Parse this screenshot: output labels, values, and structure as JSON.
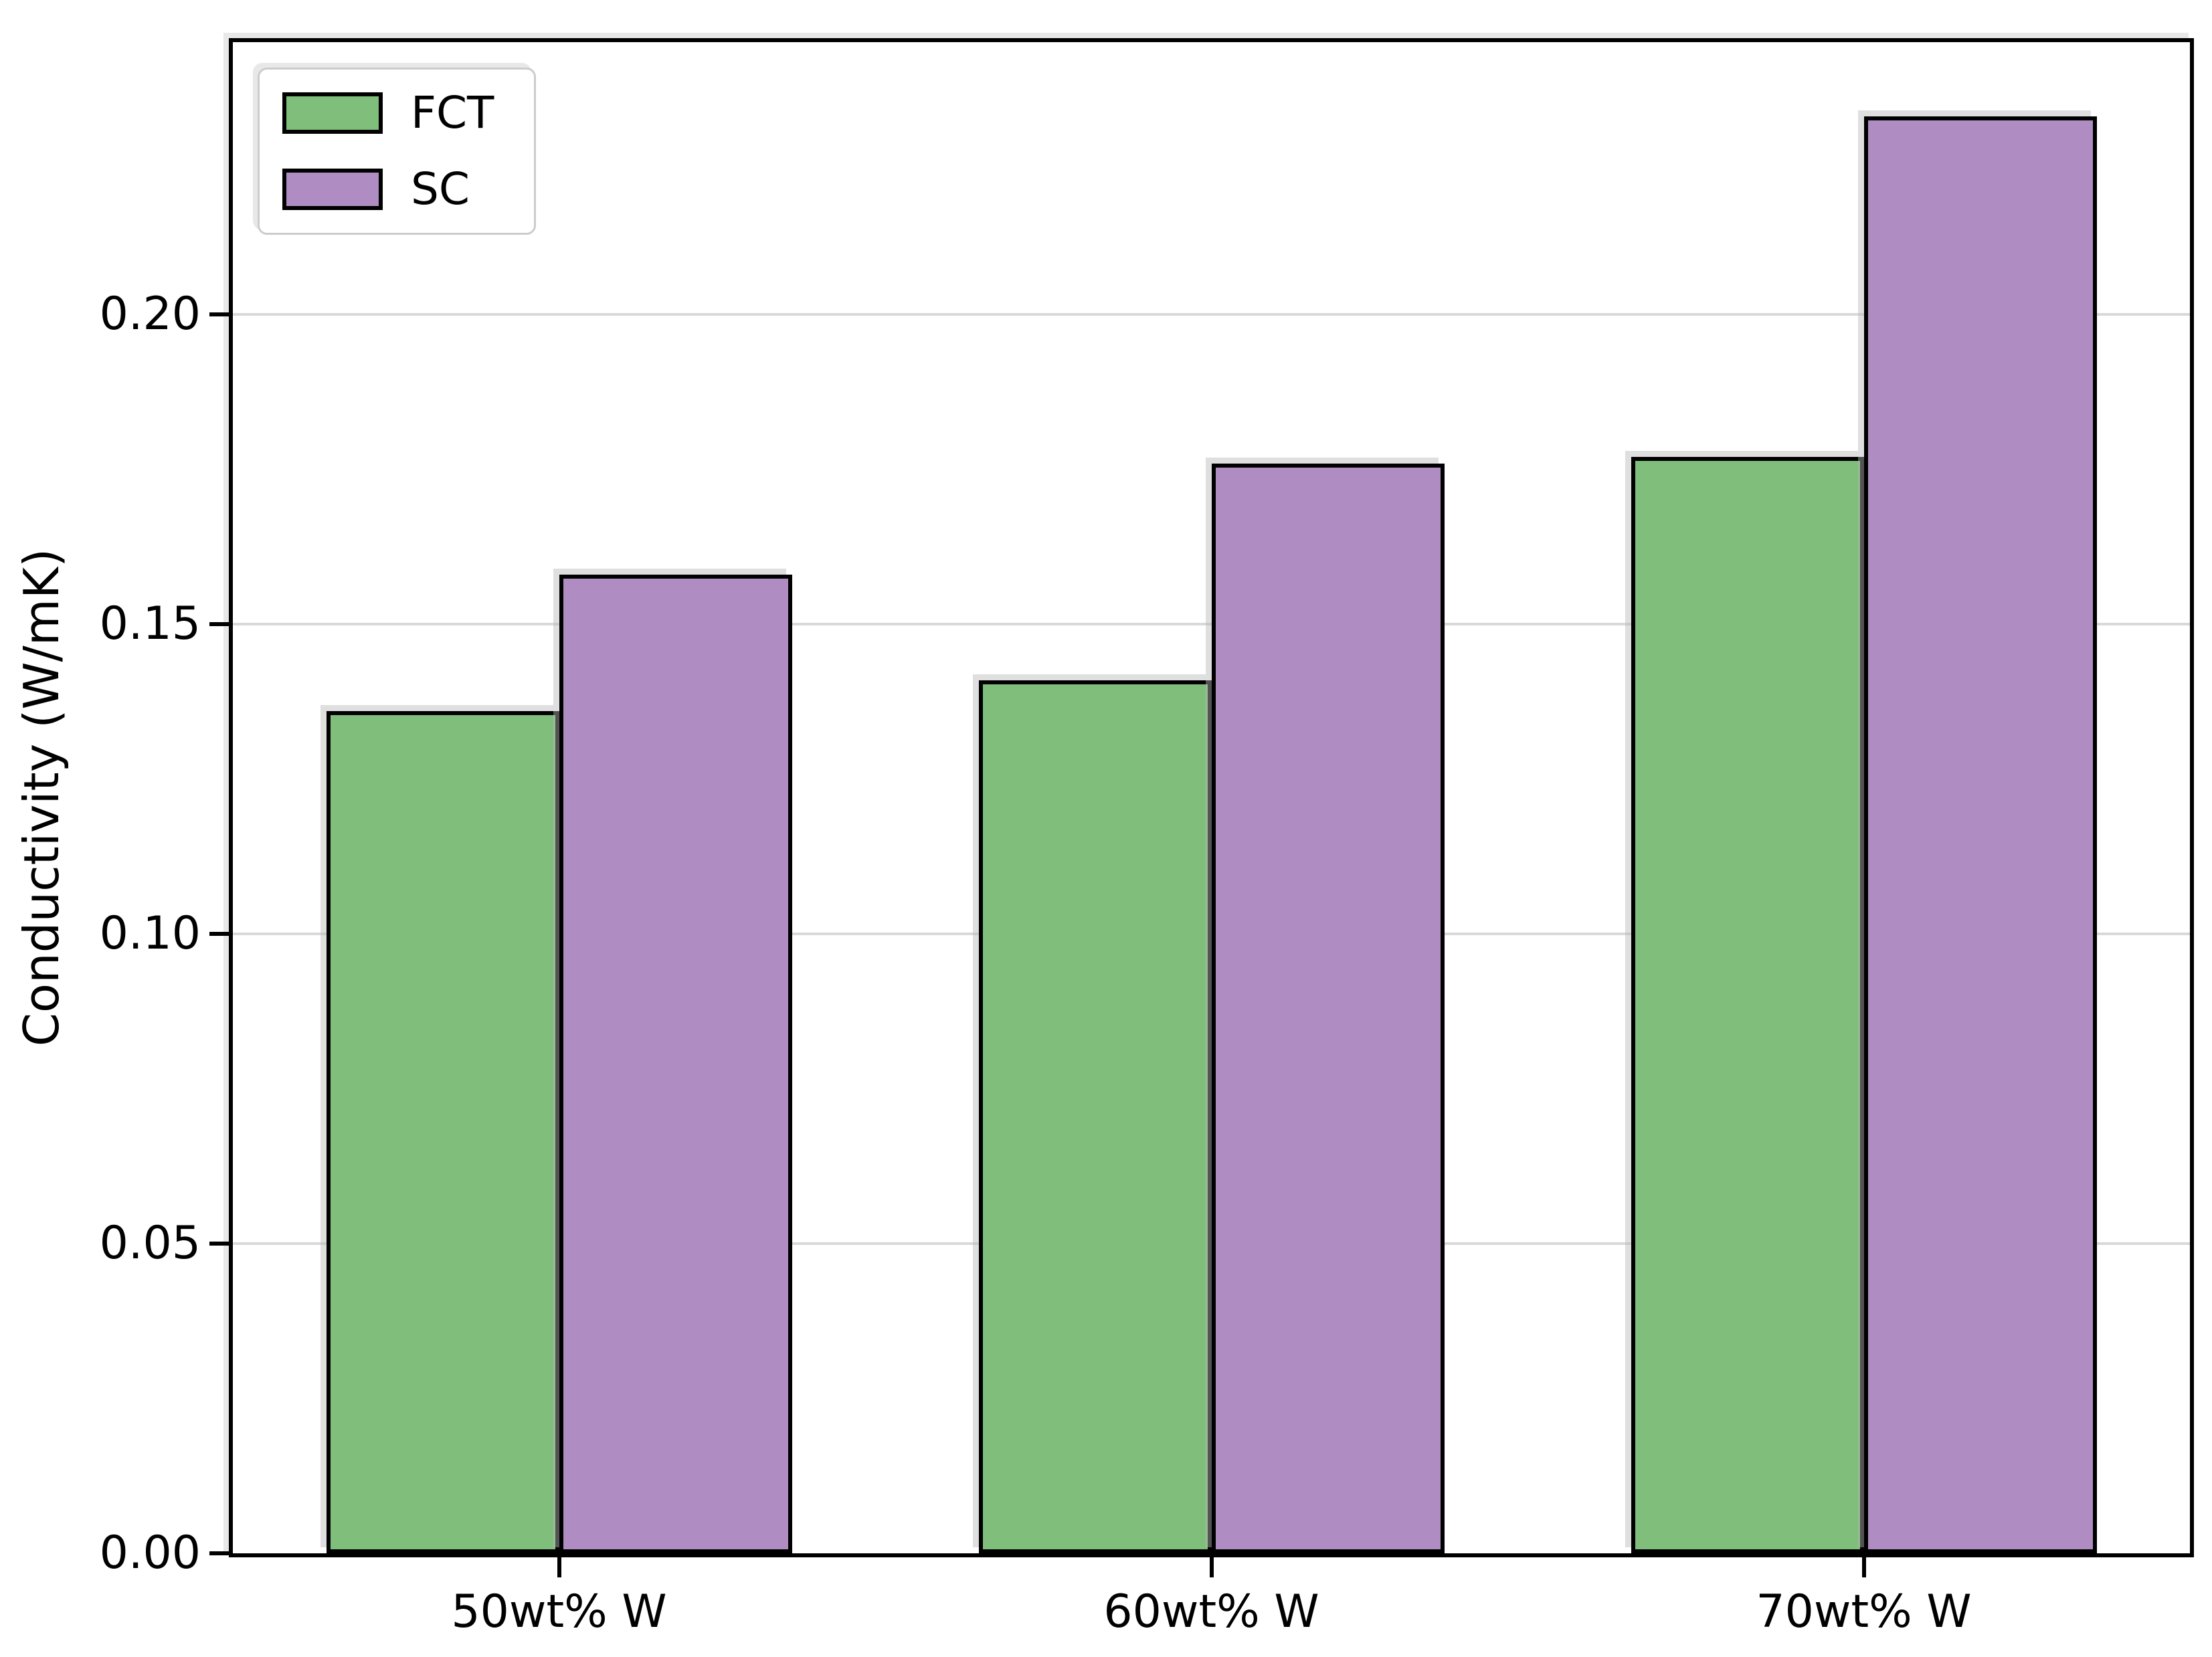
{
  "chart_data": {
    "type": "bar",
    "categories": [
      "50wt% W",
      "60wt% W",
      "70wt% W"
    ],
    "series": [
      {
        "name": "FCT",
        "color": "#7fbf7b",
        "values": [
          0.136,
          0.141,
          0.177
        ]
      },
      {
        "name": "SC",
        "color": "#af8dc3",
        "values": [
          0.158,
          0.176,
          0.232
        ]
      }
    ],
    "title": "",
    "xlabel": "",
    "ylabel": "Conductivity (W/mK)",
    "ylim": [
      0,
      0.244
    ],
    "yticks": [
      0.0,
      0.05,
      0.1,
      0.15,
      0.2
    ],
    "ytick_labels": [
      "0.00",
      "0.05",
      "0.10",
      "0.15",
      "0.20"
    ],
    "grid": "horizontal",
    "grid_color": "#d9d9d9",
    "bar_edge_color": "#000000",
    "legend_position": "upper-left"
  }
}
